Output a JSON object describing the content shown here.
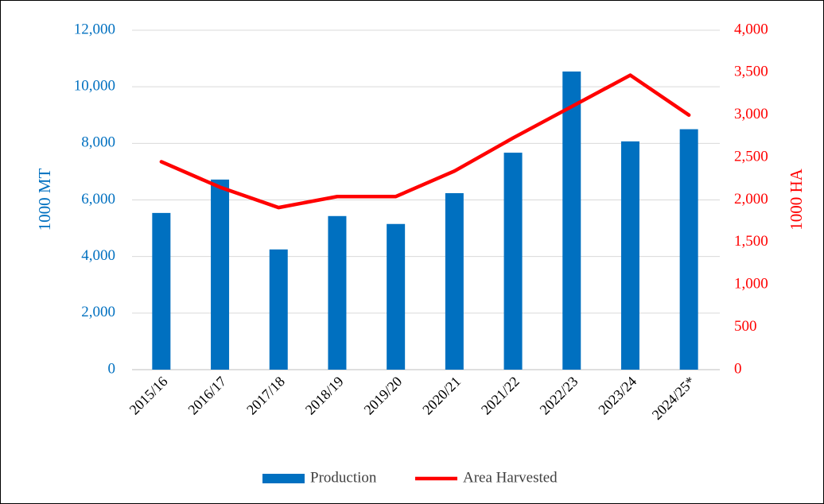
{
  "chart_data": {
    "type": "bar-line",
    "categories": [
      "2015/16",
      "2016/17",
      "2017/18",
      "2018/19",
      "2019/20",
      "2020/21",
      "2021/22",
      "2022/23",
      "2023/24",
      "2024/25*"
    ],
    "series": [
      {
        "name": "Production",
        "type": "bar",
        "color": "#0070c0",
        "axis": "y",
        "values": [
          5540,
          6720,
          4250,
          5430,
          5150,
          6240,
          7670,
          10540,
          8070,
          8500
        ]
      },
      {
        "name": "Area Harvested",
        "type": "line",
        "color": "#ff0000",
        "axis": "y2",
        "values": [
          2450,
          2150,
          1910,
          2040,
          2040,
          2340,
          2730,
          3100,
          3470,
          3000
        ]
      }
    ],
    "y_label": "1000 MT",
    "y2_label": "1000 HA",
    "ylim": [
      0,
      12000
    ],
    "yticks": [
      0,
      {
        "value": 2000,
        "label": "2,000"
      },
      {
        "value": 4000,
        "label": "4,000"
      },
      {
        "value": 6000,
        "label": "6,000"
      },
      {
        "value": 8000,
        "label": "8,000"
      },
      {
        "value": 10000,
        "label": "10,000"
      },
      {
        "value": 12000,
        "label": "12,000"
      }
    ],
    "y2lim": [
      0,
      4000
    ],
    "y2ticks": [
      0,
      500,
      {
        "value": 1000,
        "label": "1,000"
      },
      {
        "value": 1500,
        "label": "1,500"
      },
      {
        "value": 2000,
        "label": "2,000"
      },
      {
        "value": 2500,
        "label": "2,500"
      },
      {
        "value": 3000,
        "label": "3,000"
      },
      {
        "value": 3500,
        "label": "3,500"
      },
      {
        "value": 4000,
        "label": "4,000"
      }
    ],
    "grid": true,
    "legend": "bottom"
  }
}
